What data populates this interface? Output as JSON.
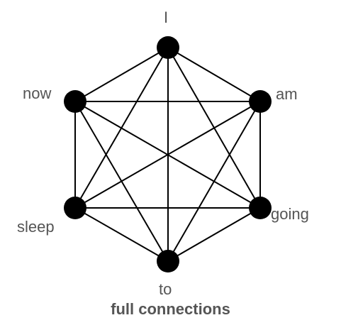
{
  "diagram": {
    "nodes": [
      {
        "id": "i",
        "label": "I"
      },
      {
        "id": "am",
        "label": "am"
      },
      {
        "id": "going",
        "label": "going"
      },
      {
        "id": "to",
        "label": "to"
      },
      {
        "id": "sleep",
        "label": "sleep"
      },
      {
        "id": "now",
        "label": "now"
      }
    ],
    "edges": [
      [
        "i",
        "am"
      ],
      [
        "i",
        "going"
      ],
      [
        "i",
        "to"
      ],
      [
        "i",
        "sleep"
      ],
      [
        "i",
        "now"
      ],
      [
        "am",
        "going"
      ],
      [
        "am",
        "to"
      ],
      [
        "am",
        "sleep"
      ],
      [
        "am",
        "now"
      ],
      [
        "going",
        "to"
      ],
      [
        "going",
        "sleep"
      ],
      [
        "going",
        "now"
      ],
      [
        "to",
        "sleep"
      ],
      [
        "to",
        "now"
      ],
      [
        "sleep",
        "now"
      ]
    ],
    "caption": "full connections",
    "colors": {
      "node": "#000000",
      "edge": "#000000",
      "label": "#555555"
    }
  }
}
